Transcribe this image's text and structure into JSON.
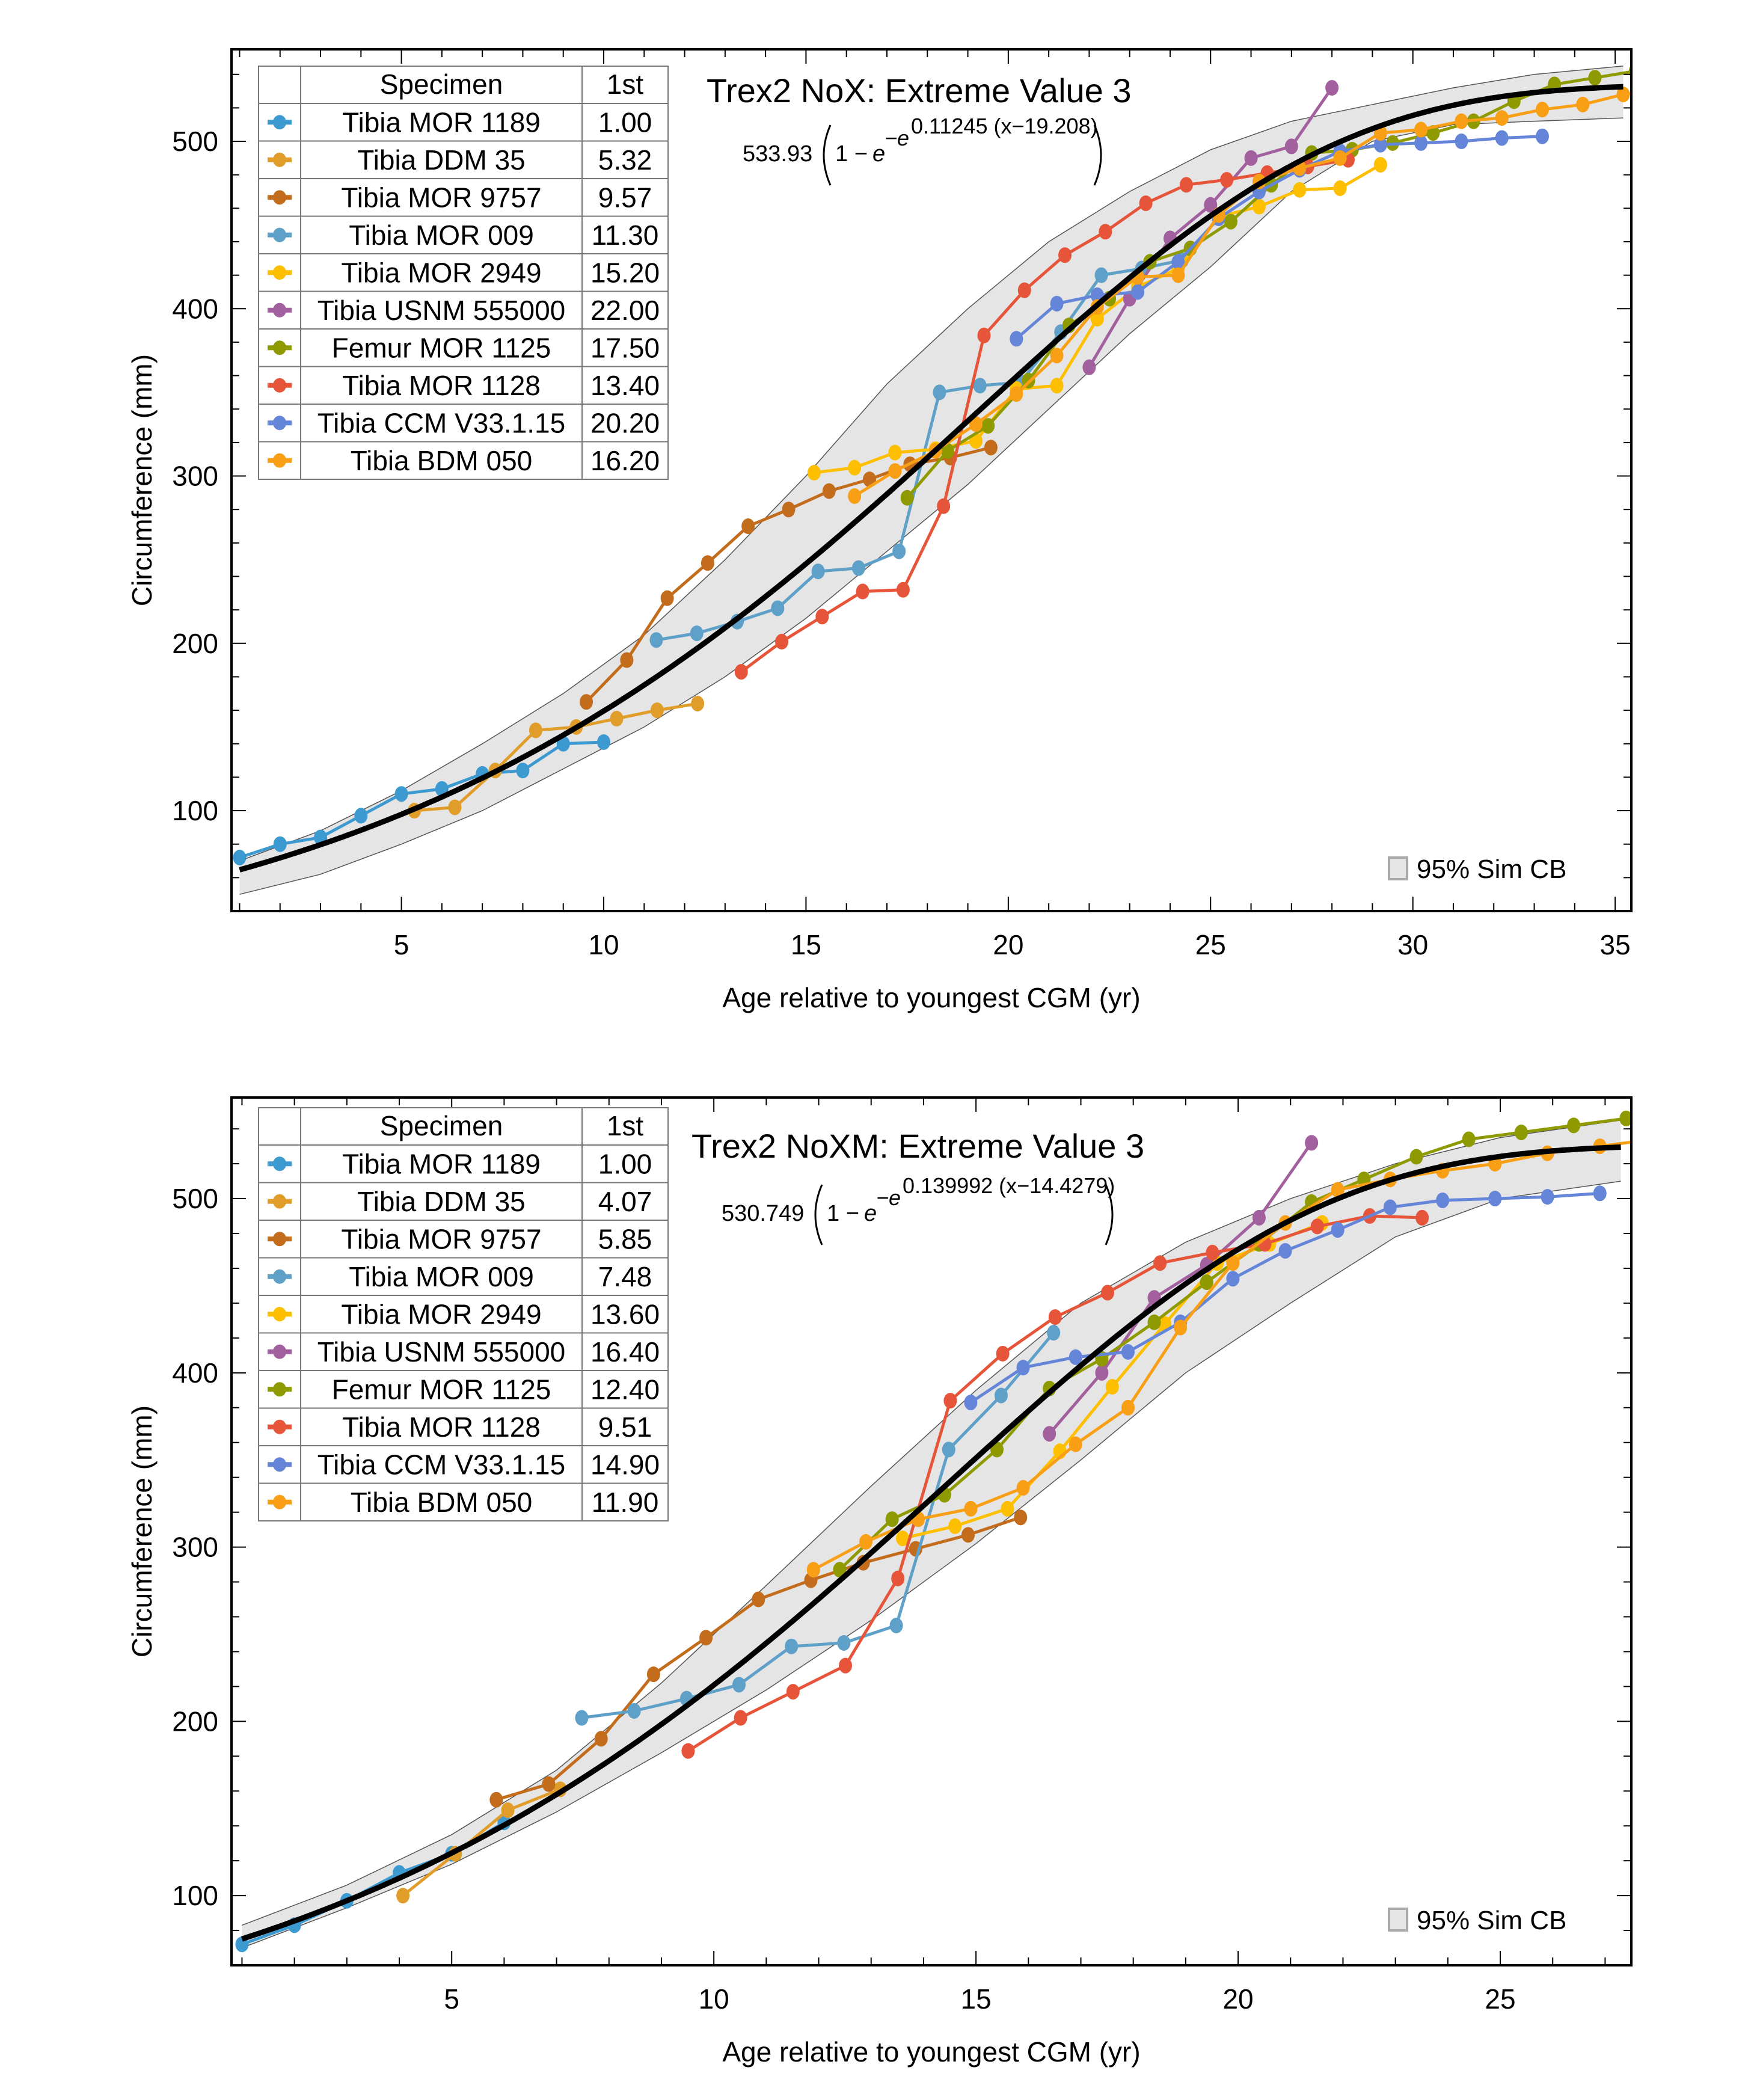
{
  "chart_data": [
    {
      "type": "line",
      "title": "Trex2 NoX: Extreme Value 3",
      "formula": {
        "coef": "533.93",
        "exponent": "0.11245 (x−19.208)",
        "params": {
          "A": 533.93,
          "k": 0.11245,
          "x0": 19.208
        }
      },
      "xlabel": "Age relative to youngest CGM (yr)",
      "ylabel": "Circumference (mm)",
      "xlim": [
        0.8,
        35.4
      ],
      "ylim": [
        40,
        555
      ],
      "xticks": [
        5,
        10,
        15,
        20,
        25,
        30,
        35
      ],
      "yticks": [
        100,
        200,
        300,
        400,
        500
      ],
      "grid": false,
      "legend_placement": "top-left",
      "legend_headers": [
        "Specimen",
        "1st"
      ],
      "band_label": "95% Sim CB",
      "band_placement": "bottom-right",
      "band": {
        "x": [
          1,
          3,
          5,
          7,
          9,
          11,
          13,
          15,
          17,
          19,
          21,
          23,
          25,
          27,
          29,
          31,
          33,
          35.2
        ],
        "lower": [
          50,
          62,
          80,
          100,
          125,
          150,
          180,
          215,
          255,
          295,
          340,
          385,
          425,
          470,
          500,
          510,
          512,
          514
        ],
        "upper": [
          70,
          88,
          112,
          140,
          170,
          205,
          250,
          300,
          355,
          400,
          440,
          470,
          495,
          512,
          522,
          532,
          540,
          545
        ]
      },
      "series": [
        {
          "name": "Tibia MOR 1189",
          "first": "1.00",
          "start": 1.0,
          "color": "#3d9ad1",
          "values": [
            72,
            80,
            84,
            97,
            110,
            113,
            122,
            124,
            140,
            141
          ]
        },
        {
          "name": "Tibia DDM 35",
          "first": "5.32",
          "start": 5.32,
          "color": "#e19d29",
          "values": [
            100,
            102,
            124,
            148,
            150,
            155,
            160,
            164
          ]
        },
        {
          "name": "Tibia MOR 9757",
          "first": "9.57",
          "start": 9.57,
          "color": "#c26c1c",
          "values": [
            165,
            190,
            227,
            248,
            270,
            280,
            291,
            298,
            307,
            311,
            317
          ]
        },
        {
          "name": "Tibia MOR 009",
          "first": "11.30",
          "start": 11.3,
          "color": "#5ea0c8",
          "values": [
            202,
            206,
            213,
            221,
            243,
            245,
            255,
            350,
            354,
            356,
            386,
            420,
            424,
            429
          ]
        },
        {
          "name": "Tibia MOR 2949",
          "first": "15.20",
          "start": 15.2,
          "color": "#fdbf00",
          "values": [
            302,
            305,
            314,
            316,
            321,
            352,
            354,
            394,
            413,
            424,
            455,
            461,
            471,
            472,
            486
          ]
        },
        {
          "name": "Tibia  USNM  555000",
          "first": "22.00",
          "start": 22.0,
          "color": "#a3609e",
          "values": [
            365,
            406,
            442,
            462,
            490,
            497,
            532
          ]
        },
        {
          "name": "Femur MOR 1125",
          "first": "17.50",
          "start": 17.5,
          "color": "#8f9a00",
          "values": [
            287,
            315,
            330,
            357,
            390,
            406,
            428,
            436,
            452,
            474,
            493,
            495,
            499,
            505,
            512,
            524,
            534,
            538,
            542,
            546
          ]
        },
        {
          "name": "Tibia MOR 1128",
          "first": "13.40",
          "start": 13.4,
          "color": "#e6553a",
          "values": [
            183,
            201,
            216,
            231,
            232,
            282,
            384,
            411,
            432,
            446,
            463,
            474,
            477,
            481,
            485,
            489
          ]
        },
        {
          "name": "Tibia CCM V33.1.15",
          "first": "20.20",
          "start": 20.2,
          "color": "#6585d8",
          "values": [
            382,
            403,
            408,
            410,
            428,
            454,
            470,
            483,
            494,
            498,
            499,
            500,
            502,
            503
          ]
        },
        {
          "name": "Tibia BDM 050",
          "first": "16.20",
          "start": 16.2,
          "color": "#f89f16",
          "values": [
            288,
            303,
            315,
            331,
            349,
            372,
            401,
            419,
            420,
            456,
            476,
            484,
            490,
            505,
            507,
            512,
            514,
            519,
            522,
            528,
            531,
            534,
            535
          ]
        }
      ]
    },
    {
      "type": "line",
      "title": "Trex2 NoXM: Extreme Value 3",
      "formula": {
        "coef": "530.749",
        "exponent": "0.139992 (x−14.4279)",
        "params": {
          "A": 530.749,
          "k": 0.139992,
          "x0": 14.4279
        }
      },
      "xlabel": "Age relative to youngest CGM (yr)",
      "ylabel": "Circumference (mm)",
      "xlim": [
        0.8,
        27.5
      ],
      "ylim": [
        60,
        558
      ],
      "xticks": [
        5,
        10,
        15,
        20,
        25
      ],
      "yticks": [
        100,
        200,
        300,
        400,
        500
      ],
      "grid": false,
      "legend_placement": "top-left",
      "legend_headers": [
        "Specimen",
        "1st"
      ],
      "band_label": "95% Sim CB",
      "band_placement": "bottom-right",
      "band": {
        "x": [
          1,
          3,
          5,
          7,
          9,
          11,
          13,
          15,
          17,
          19,
          21,
          23,
          25,
          27.3
        ],
        "lower": [
          70,
          93,
          118,
          148,
          182,
          218,
          258,
          302,
          350,
          400,
          440,
          478,
          500,
          510
        ],
        "upper": [
          83,
          106,
          135,
          172,
          222,
          278,
          335,
          390,
          440,
          475,
          500,
          520,
          535,
          545
        ]
      },
      "series": [
        {
          "name": "Tibia MOR 1189",
          "first": "1.00",
          "start": 1.0,
          "color": "#3d9ad1",
          "values": [
            72,
            83,
            97,
            113,
            124,
            142
          ]
        },
        {
          "name": "Tibia DDM 35",
          "first": "4.07",
          "start": 4.07,
          "color": "#e19d29",
          "values": [
            100,
            124,
            149,
            161
          ]
        },
        {
          "name": "Tibia MOR 9757",
          "first": "5.85",
          "start": 5.85,
          "color": "#c26c1c",
          "values": [
            155,
            164,
            190,
            227,
            248,
            270,
            281,
            291,
            299,
            307,
            317
          ]
        },
        {
          "name": "Tibia MOR 009",
          "first": "7.48",
          "start": 7.48,
          "color": "#5ea0c8",
          "values": [
            202,
            206,
            213,
            221,
            243,
            245,
            255,
            356,
            387,
            423
          ]
        },
        {
          "name": "Tibia MOR 2949",
          "first": "13.60",
          "start": 13.6,
          "color": "#fdbf00",
          "values": [
            305,
            312,
            322,
            355,
            392,
            428,
            463,
            474,
            486
          ]
        },
        {
          "name": "Tibia  USNM  555000",
          "first": "16.40",
          "start": 16.4,
          "color": "#a3609e",
          "values": [
            365,
            400,
            443,
            462,
            489,
            532
          ]
        },
        {
          "name": "Femur MOR 1125",
          "first": "12.40",
          "start": 12.4,
          "color": "#8f9a00",
          "values": [
            287,
            316,
            330,
            356,
            391,
            408,
            429,
            452,
            474,
            498,
            511,
            524,
            534,
            538,
            542,
            546
          ]
        },
        {
          "name": "Tibia MOR 1128",
          "first": "9.51",
          "start": 9.51,
          "color": "#e6553a",
          "values": [
            183,
            202,
            217,
            232,
            282,
            384,
            411,
            432,
            446,
            463,
            469,
            474,
            484,
            490,
            489
          ]
        },
        {
          "name": "Tibia CCM V33.1.15",
          "first": "14.90",
          "start": 14.9,
          "color": "#6585d8",
          "values": [
            383,
            403,
            409,
            412,
            429,
            454,
            470,
            482,
            495,
            499,
            500,
            501,
            503
          ]
        },
        {
          "name": "Tibia BDM 050",
          "first": "11.90",
          "start": 11.9,
          "color": "#f89f16",
          "values": [
            287,
            303,
            316,
            322,
            334,
            359,
            380,
            426,
            463,
            486,
            505,
            511,
            516,
            520,
            526,
            530,
            534
          ]
        }
      ]
    }
  ]
}
